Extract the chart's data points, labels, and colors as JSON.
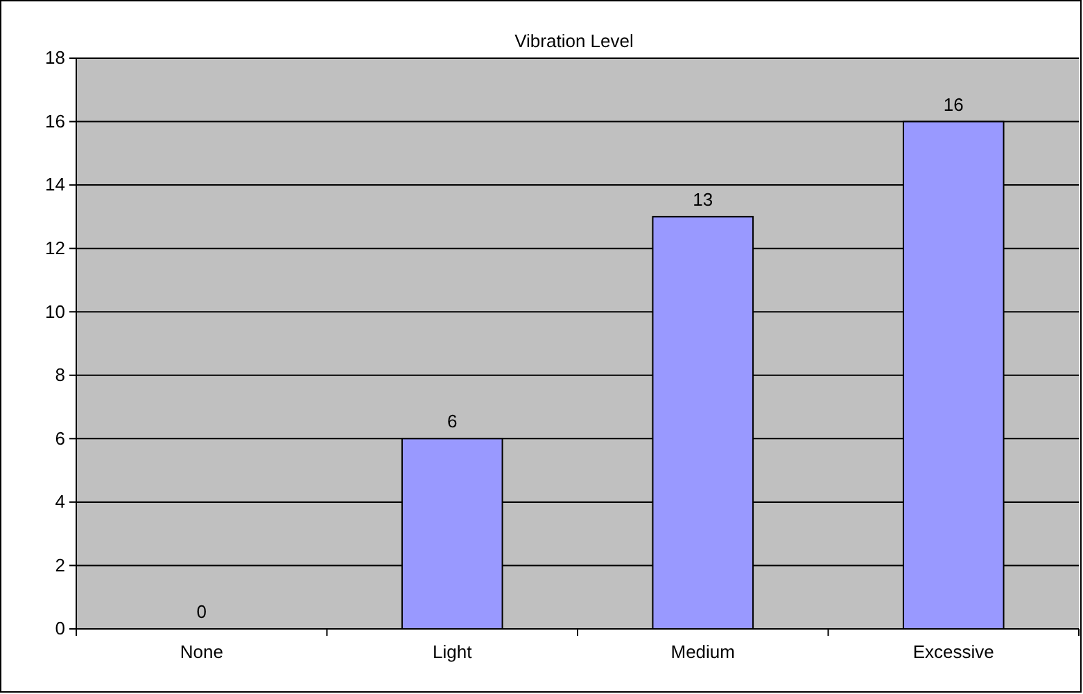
{
  "chart_data": {
    "type": "bar",
    "title": "Vibration Level",
    "categories": [
      "None",
      "Light",
      "Medium",
      "Excessive"
    ],
    "values": [
      0,
      6,
      13,
      16
    ],
    "color": "#9999ff",
    "ylim": [
      0,
      18
    ],
    "yticks": [
      0,
      2,
      4,
      6,
      8,
      10,
      12,
      14,
      16,
      18
    ],
    "grid": "y",
    "data_labels": true
  }
}
